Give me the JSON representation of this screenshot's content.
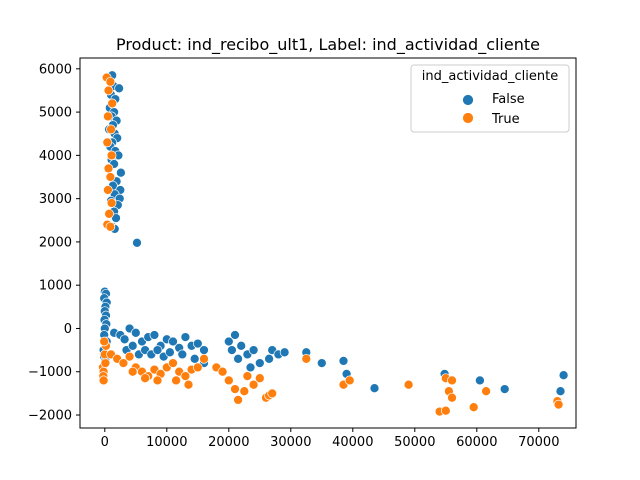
{
  "chart_data": {
    "type": "scatter",
    "title": "Product: ind_recibo_ult1, Label: ind_actividad_cliente",
    "xlabel": "",
    "ylabel": "",
    "xlim": [
      -4000,
      76000
    ],
    "ylim": [
      -2300,
      6250
    ],
    "x_ticks": [
      0,
      10000,
      20000,
      30000,
      40000,
      50000,
      60000,
      70000
    ],
    "y_ticks": [
      -2000,
      -1000,
      0,
      1000,
      2000,
      3000,
      4000,
      5000,
      6000
    ],
    "grid": false,
    "legend": {
      "title": "ind_actividad_cliente",
      "placement": "top-right",
      "entries": [
        {
          "label": "False",
          "color": "#1f77b4"
        },
        {
          "label": "True",
          "color": "#ff7f0e"
        }
      ]
    },
    "series": [
      {
        "name": "False",
        "color": "#1f77b4",
        "points": [
          [
            600,
            5800
          ],
          [
            1200,
            5850
          ],
          [
            1400,
            5600
          ],
          [
            2300,
            5550
          ],
          [
            1000,
            5400
          ],
          [
            1700,
            5300
          ],
          [
            800,
            5100
          ],
          [
            1500,
            5000
          ],
          [
            1100,
            4900
          ],
          [
            1900,
            4800
          ],
          [
            1300,
            4700
          ],
          [
            700,
            4600
          ],
          [
            1600,
            4500
          ],
          [
            2000,
            4400
          ],
          [
            1200,
            4300
          ],
          [
            900,
            4200
          ],
          [
            1700,
            4100
          ],
          [
            2200,
            4000
          ],
          [
            1100,
            3900
          ],
          [
            1500,
            3800
          ],
          [
            2600,
            3600
          ],
          [
            800,
            3500
          ],
          [
            1900,
            3400
          ],
          [
            1300,
            3300
          ],
          [
            2500,
            3200
          ],
          [
            1600,
            3100
          ],
          [
            2400,
            3000
          ],
          [
            1000,
            2950
          ],
          [
            2100,
            2850
          ],
          [
            1500,
            2700
          ],
          [
            1800,
            2550
          ],
          [
            1200,
            2350
          ],
          [
            1600,
            2300
          ],
          [
            5200,
            1980
          ],
          [
            0,
            850
          ],
          [
            200,
            800
          ],
          [
            -100,
            700
          ],
          [
            300,
            600
          ],
          [
            100,
            500
          ],
          [
            0,
            400
          ],
          [
            200,
            300
          ],
          [
            -50,
            200
          ],
          [
            250,
            100
          ],
          [
            0,
            0
          ],
          [
            -100,
            -150
          ],
          [
            300,
            -300
          ],
          [
            -200,
            -500
          ],
          [
            -100,
            -650
          ],
          [
            100,
            -750
          ],
          [
            1500,
            -100
          ],
          [
            2500,
            -150
          ],
          [
            3200,
            -250
          ],
          [
            4000,
            0
          ],
          [
            5000,
            -100
          ],
          [
            6000,
            -300
          ],
          [
            7000,
            -200
          ],
          [
            8000,
            -150
          ],
          [
            9000,
            -400
          ],
          [
            10000,
            -250
          ],
          [
            11000,
            -300
          ],
          [
            12000,
            -450
          ],
          [
            13000,
            -200
          ],
          [
            14000,
            -400
          ],
          [
            15000,
            -350
          ],
          [
            16000,
            -500
          ],
          [
            3500,
            -500
          ],
          [
            4500,
            -400
          ],
          [
            5500,
            -600
          ],
          [
            6500,
            -500
          ],
          [
            7500,
            -600
          ],
          [
            8500,
            -500
          ],
          [
            9500,
            -650
          ],
          [
            10500,
            -550
          ],
          [
            12500,
            -600
          ],
          [
            14500,
            -700
          ],
          [
            16000,
            -800
          ],
          [
            20000,
            -300
          ],
          [
            20500,
            -500
          ],
          [
            21000,
            -150
          ],
          [
            21500,
            -700
          ],
          [
            22000,
            -400
          ],
          [
            23000,
            -600
          ],
          [
            23500,
            -900
          ],
          [
            24000,
            -500
          ],
          [
            25000,
            -800
          ],
          [
            26500,
            -700
          ],
          [
            27000,
            -500
          ],
          [
            28000,
            -600
          ],
          [
            29000,
            -550
          ],
          [
            32500,
            -550
          ],
          [
            35000,
            -800
          ],
          [
            38500,
            -750
          ],
          [
            39000,
            -1050
          ],
          [
            43500,
            -1380
          ],
          [
            54800,
            -1050
          ],
          [
            60500,
            -1200
          ],
          [
            64500,
            -1400
          ],
          [
            73500,
            -1450
          ],
          [
            74000,
            -1080
          ]
        ]
      },
      {
        "name": "True",
        "color": "#ff7f0e",
        "points": [
          [
            300,
            5800
          ],
          [
            900,
            5700
          ],
          [
            600,
            5500
          ],
          [
            1200,
            5200
          ],
          [
            500,
            4900
          ],
          [
            1000,
            4600
          ],
          [
            400,
            4300
          ],
          [
            1100,
            4000
          ],
          [
            600,
            3700
          ],
          [
            900,
            3500
          ],
          [
            500,
            3200
          ],
          [
            1100,
            2900
          ],
          [
            700,
            2650
          ],
          [
            400,
            2400
          ],
          [
            900,
            2350
          ],
          [
            -300,
            -900
          ],
          [
            -200,
            -1000
          ],
          [
            -250,
            -1100
          ],
          [
            -200,
            -1200
          ],
          [
            100,
            -800
          ],
          [
            0,
            -600
          ],
          [
            200,
            -400
          ],
          [
            -100,
            -300
          ],
          [
            1000,
            -600
          ],
          [
            2000,
            -700
          ],
          [
            3000,
            -800
          ],
          [
            4000,
            -650
          ],
          [
            5000,
            -900
          ],
          [
            6000,
            -1000
          ],
          [
            7000,
            -1100
          ],
          [
            8000,
            -950
          ],
          [
            9000,
            -1050
          ],
          [
            10000,
            -900
          ],
          [
            11000,
            -800
          ],
          [
            12000,
            -1000
          ],
          [
            13000,
            -1100
          ],
          [
            13500,
            -1300
          ],
          [
            14000,
            -950
          ],
          [
            15000,
            -900
          ],
          [
            16000,
            -700
          ],
          [
            4500,
            -1000
          ],
          [
            6500,
            -1150
          ],
          [
            8500,
            -1200
          ],
          [
            11500,
            -1200
          ],
          [
            18000,
            -900
          ],
          [
            19000,
            -1000
          ],
          [
            20000,
            -1200
          ],
          [
            21000,
            -1400
          ],
          [
            21500,
            -1650
          ],
          [
            22500,
            -1450
          ],
          [
            23000,
            -1100
          ],
          [
            24000,
            -1300
          ],
          [
            25000,
            -1150
          ],
          [
            26000,
            -1600
          ],
          [
            26500,
            -1550
          ],
          [
            27000,
            -1500
          ],
          [
            32500,
            -700
          ],
          [
            38500,
            -1300
          ],
          [
            39500,
            -1200
          ],
          [
            49000,
            -1300
          ],
          [
            54000,
            -1920
          ],
          [
            55000,
            -1900
          ],
          [
            55000,
            -1150
          ],
          [
            55500,
            -1450
          ],
          [
            56000,
            -1600
          ],
          [
            56000,
            -1200
          ],
          [
            59500,
            -1820
          ],
          [
            61500,
            -1450
          ],
          [
            73000,
            -1680
          ],
          [
            73200,
            -1760
          ]
        ]
      }
    ]
  }
}
